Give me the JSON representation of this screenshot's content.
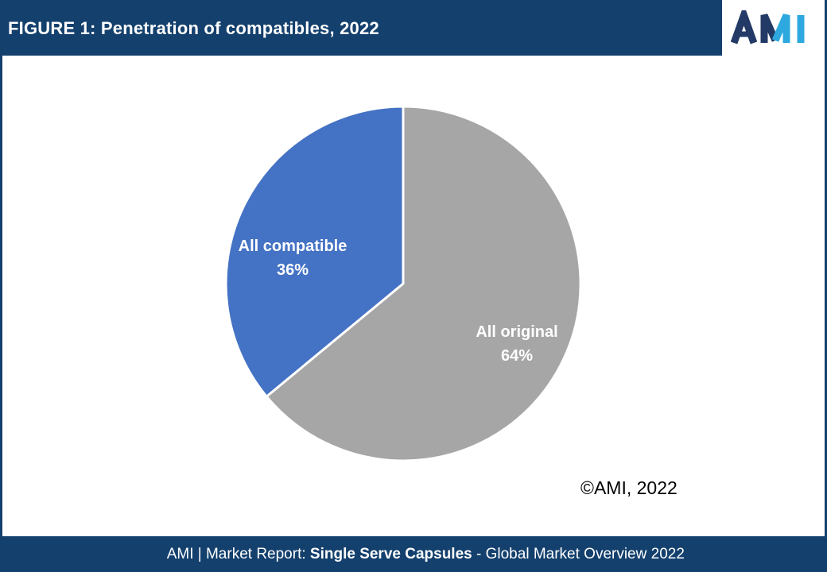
{
  "header": {
    "title": "FIGURE 1: Penetration of compatibles, 2022"
  },
  "logo": {
    "text": "AMI",
    "navy": "#233a66",
    "light_blue": "#2ea9e0"
  },
  "chart_data": {
    "type": "pie",
    "title": "FIGURE 1: Penetration of compatibles, 2022",
    "start_angle_deg": 0,
    "direction": "clockwise",
    "legend": "none",
    "slices": [
      {
        "label": "All original",
        "value": 64,
        "pct_label": "64%",
        "color": "#a6a6a6"
      },
      {
        "label": "All compatible",
        "value": 36,
        "pct_label": "36%",
        "color": "#4472c4"
      }
    ],
    "slice_border_color": "#ffffff",
    "label_style": "category name and percentage inside slice, white bold"
  },
  "annotations": {
    "copyright": "©AMI, 2022"
  },
  "footer": {
    "prefix": "AMI | Market Report: ",
    "bold_text": "Single Serve Capsules",
    "suffix": " - Global Market Overview 2022"
  },
  "colors": {
    "frame_navy": "#14406d",
    "background": "#ffffff",
    "pie_blue": "#4472c4",
    "pie_gray": "#a6a6a6"
  }
}
